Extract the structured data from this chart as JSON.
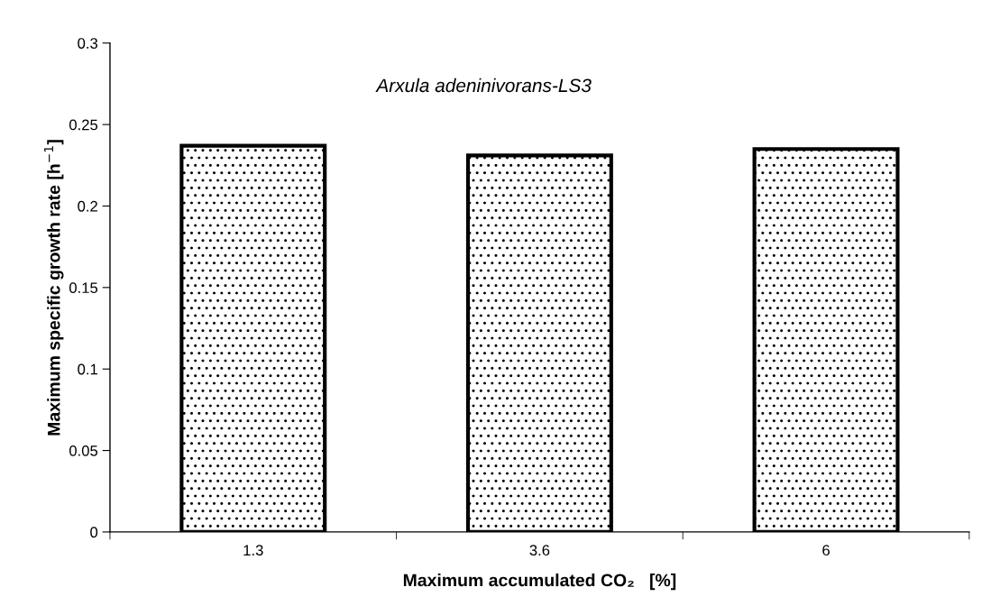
{
  "chart_data": {
    "type": "bar",
    "categories": [
      "1.3",
      "3.6",
      "6"
    ],
    "values": [
      0.237,
      0.231,
      0.235
    ],
    "xlabel": "Maximum accumulated CO₂   [%]",
    "ylabel": "Maximum specific growth rate [h$^{−1}$]",
    "annotations": [
      "Arxula adeninivorans-LS3"
    ],
    "ylim": [
      0,
      0.3
    ],
    "yticks": [
      0,
      0.05,
      0.1,
      0.15,
      0.2,
      {
        "value": 0.25,
        "label": "0.25"
      },
      0.3
    ],
    "grid": false,
    "legend": false
  }
}
